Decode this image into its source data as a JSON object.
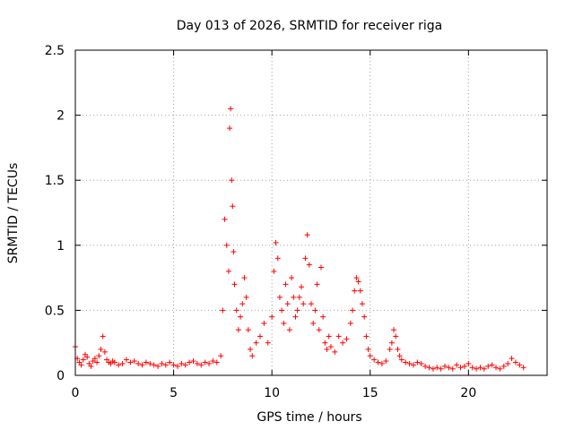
{
  "chart_data": {
    "type": "scatter",
    "title": "Day 013 of 2026, SRMTID for receiver riga",
    "xlabel": "GPS time / hours",
    "ylabel": "SRMTID / TECUs",
    "xlim": [
      0,
      24
    ],
    "ylim": [
      0,
      2.5
    ],
    "xticks": [
      0,
      5,
      10,
      15,
      20
    ],
    "xtick_labels": [
      "0",
      "5",
      "10",
      "15",
      "20"
    ],
    "yticks": [
      0,
      0.5,
      1,
      1.5,
      2,
      2.5
    ],
    "ytick_labels": [
      "0",
      "0.5",
      "1",
      "1.5",
      "2",
      "2.5"
    ],
    "grid": true,
    "marker": "+",
    "color": "#ff0000",
    "series": [
      {
        "name": "SRMTID",
        "x": [
          0.0,
          0.1,
          0.2,
          0.3,
          0.4,
          0.5,
          0.6,
          0.7,
          0.8,
          0.9,
          1.0,
          1.1,
          1.2,
          1.3,
          1.4,
          1.5,
          1.6,
          1.7,
          1.8,
          1.9,
          2.0,
          2.2,
          2.4,
          2.6,
          2.8,
          3.0,
          3.2,
          3.4,
          3.6,
          3.8,
          4.0,
          4.2,
          4.4,
          4.6,
          4.8,
          5.0,
          5.2,
          5.4,
          5.6,
          5.8,
          6.0,
          6.2,
          6.4,
          6.6,
          6.8,
          7.0,
          7.2,
          7.4,
          7.5,
          7.6,
          7.7,
          7.8,
          7.85,
          7.9,
          7.95,
          8.0,
          8.05,
          8.1,
          8.2,
          8.3,
          8.4,
          8.5,
          8.6,
          8.7,
          8.8,
          8.9,
          9.0,
          9.2,
          9.4,
          9.6,
          9.8,
          10.0,
          10.1,
          10.2,
          10.3,
          10.4,
          10.5,
          10.6,
          10.7,
          10.8,
          10.9,
          11.0,
          11.1,
          11.2,
          11.3,
          11.4,
          11.5,
          11.6,
          11.7,
          11.8,
          11.9,
          12.0,
          12.1,
          12.2,
          12.3,
          12.4,
          12.5,
          12.6,
          12.7,
          12.8,
          12.9,
          13.0,
          13.2,
          13.4,
          13.6,
          13.8,
          14.0,
          14.1,
          14.2,
          14.3,
          14.4,
          14.5,
          14.6,
          14.7,
          14.8,
          14.9,
          15.0,
          15.2,
          15.4,
          15.6,
          15.8,
          16.0,
          16.1,
          16.2,
          16.3,
          16.4,
          16.5,
          16.6,
          16.8,
          17.0,
          17.2,
          17.4,
          17.6,
          17.8,
          18.0,
          18.2,
          18.4,
          18.6,
          18.8,
          19.0,
          19.2,
          19.4,
          19.6,
          19.8,
          20.0,
          20.2,
          20.4,
          20.6,
          20.8,
          21.0,
          21.2,
          21.4,
          21.6,
          21.8,
          22.0,
          22.2,
          22.4,
          22.6,
          22.8
        ],
        "y": [
          0.22,
          0.13,
          0.1,
          0.08,
          0.12,
          0.16,
          0.14,
          0.09,
          0.07,
          0.11,
          0.13,
          0.1,
          0.15,
          0.2,
          0.3,
          0.18,
          0.12,
          0.1,
          0.09,
          0.11,
          0.1,
          0.08,
          0.09,
          0.12,
          0.1,
          0.11,
          0.09,
          0.08,
          0.1,
          0.09,
          0.08,
          0.07,
          0.09,
          0.08,
          0.1,
          0.08,
          0.07,
          0.09,
          0.08,
          0.1,
          0.11,
          0.09,
          0.08,
          0.1,
          0.09,
          0.11,
          0.1,
          0.15,
          0.5,
          1.2,
          1.0,
          0.8,
          1.9,
          2.05,
          1.5,
          1.3,
          0.95,
          0.7,
          0.5,
          0.35,
          0.45,
          0.55,
          0.75,
          0.6,
          0.35,
          0.2,
          0.15,
          0.25,
          0.3,
          0.4,
          0.25,
          0.45,
          0.8,
          1.02,
          0.9,
          0.6,
          0.5,
          0.4,
          0.7,
          0.55,
          0.35,
          0.75,
          0.6,
          0.45,
          0.5,
          0.6,
          0.68,
          0.55,
          0.9,
          1.08,
          0.85,
          0.55,
          0.4,
          0.5,
          0.7,
          0.35,
          0.83,
          0.45,
          0.25,
          0.2,
          0.3,
          0.22,
          0.18,
          0.3,
          0.25,
          0.28,
          0.4,
          0.5,
          0.65,
          0.75,
          0.72,
          0.65,
          0.55,
          0.45,
          0.3,
          0.2,
          0.15,
          0.12,
          0.1,
          0.09,
          0.11,
          0.2,
          0.25,
          0.35,
          0.3,
          0.2,
          0.15,
          0.12,
          0.1,
          0.09,
          0.08,
          0.1,
          0.09,
          0.07,
          0.06,
          0.05,
          0.06,
          0.05,
          0.07,
          0.06,
          0.05,
          0.08,
          0.06,
          0.07,
          0.09,
          0.06,
          0.05,
          0.06,
          0.05,
          0.07,
          0.08,
          0.06,
          0.05,
          0.07,
          0.09,
          0.13,
          0.1,
          0.08,
          0.06
        ]
      }
    ]
  }
}
